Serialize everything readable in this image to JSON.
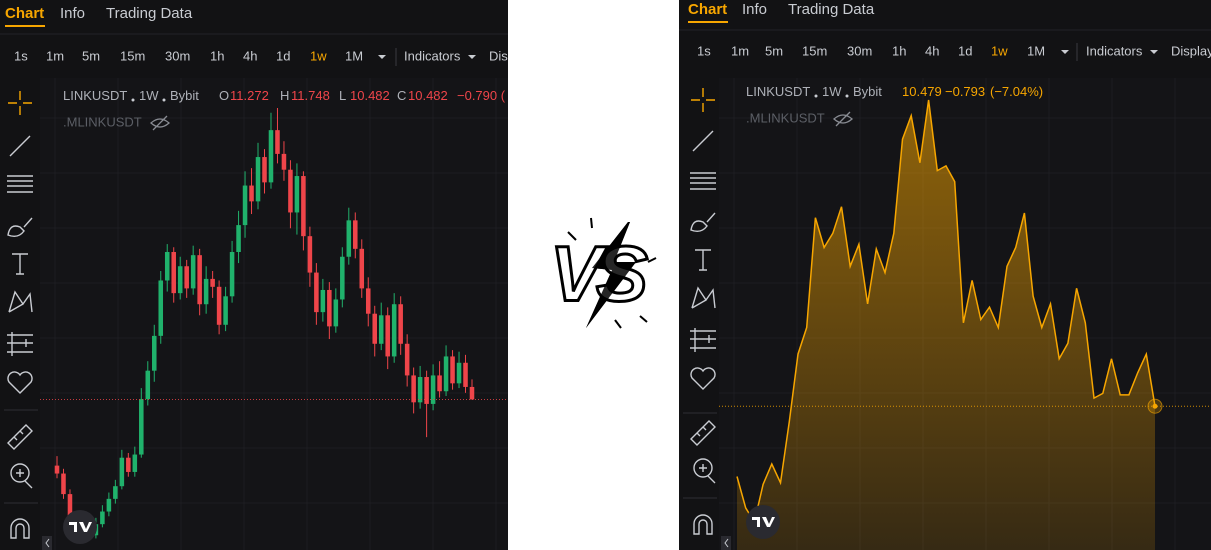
{
  "panels": [
    {
      "tabs": [
        "Chart",
        "Info",
        "Trading Data"
      ],
      "timeframes": [
        "1s",
        "1m",
        "5m",
        "15m",
        "30m",
        "1h",
        "4h",
        "1d",
        "1w",
        "1M"
      ],
      "indicators": "Indicators",
      "display": "Dis",
      "symbol": "LINKUSDT",
      "interval": "1W",
      "exchange": "Bybit",
      "ohlc": [
        {
          "label": "O",
          "value": 11.272
        },
        {
          "label": "H",
          "value": 11.748
        },
        {
          "label": "L",
          "value": 10.482
        },
        {
          "label": "C",
          "value": 10.482
        }
      ],
      "change": "−0.790 (",
      "secondary": ".MLINKUSDT",
      "chart": {
        "type": "candlestick",
        "up_color": "#20b26c",
        "down_color": "#ef454a",
        "candles": [
          [
            6.3,
            6.9,
            5.5,
            5.8
          ],
          [
            5.8,
            6.1,
            4.2,
            4.5
          ],
          [
            4.5,
            4.8,
            2.7,
            3.0
          ],
          [
            3.0,
            3.4,
            1.9,
            2.2
          ],
          [
            2.2,
            2.9,
            1.8,
            2.5
          ],
          [
            2.5,
            2.7,
            1.6,
            1.9
          ],
          [
            1.9,
            3.0,
            1.7,
            2.6
          ],
          [
            2.6,
            3.8,
            2.4,
            3.4
          ],
          [
            3.4,
            4.6,
            3.1,
            4.2
          ],
          [
            4.2,
            5.4,
            3.9,
            5.0
          ],
          [
            5.0,
            7.3,
            4.8,
            6.8
          ],
          [
            6.8,
            7.1,
            5.6,
            5.9
          ],
          [
            5.9,
            7.5,
            5.6,
            7.0
          ],
          [
            7.0,
            11.2,
            6.8,
            10.5
          ],
          [
            10.5,
            12.9,
            10.1,
            12.3
          ],
          [
            12.3,
            15.2,
            11.6,
            14.5
          ],
          [
            14.5,
            18.6,
            14.0,
            18.0
          ],
          [
            18.0,
            20.3,
            17.3,
            19.8
          ],
          [
            19.8,
            20.1,
            16.6,
            17.2
          ],
          [
            17.2,
            19.5,
            16.8,
            18.9
          ],
          [
            18.9,
            19.3,
            16.9,
            17.5
          ],
          [
            17.5,
            20.2,
            17.1,
            19.6
          ],
          [
            19.6,
            20.0,
            15.8,
            16.5
          ],
          [
            16.5,
            18.9,
            15.9,
            18.1
          ],
          [
            18.1,
            18.6,
            16.9,
            17.6
          ],
          [
            17.6,
            18.0,
            14.6,
            15.2
          ],
          [
            15.2,
            17.6,
            14.8,
            17.0
          ],
          [
            17.0,
            20.5,
            16.6,
            19.8
          ],
          [
            19.8,
            22.4,
            19.1,
            21.5
          ],
          [
            21.5,
            24.9,
            20.7,
            24.0
          ],
          [
            24.0,
            25.1,
            22.2,
            23.0
          ],
          [
            23.0,
            26.7,
            22.5,
            25.8
          ],
          [
            25.8,
            26.3,
            23.5,
            24.2
          ],
          [
            24.2,
            28.6,
            23.8,
            27.5
          ],
          [
            27.5,
            28.9,
            25.4,
            26.0
          ],
          [
            26.0,
            26.8,
            24.3,
            25.0
          ],
          [
            25.0,
            25.6,
            21.3,
            22.3
          ],
          [
            22.3,
            25.4,
            20.9,
            24.6
          ],
          [
            24.6,
            24.9,
            19.9,
            20.8
          ],
          [
            20.8,
            21.4,
            17.6,
            18.5
          ],
          [
            18.5,
            19.1,
            15.2,
            16.0
          ],
          [
            16.0,
            18.1,
            15.4,
            17.4
          ],
          [
            17.4,
            17.9,
            14.3,
            15.1
          ],
          [
            15.1,
            17.5,
            14.7,
            16.8
          ],
          [
            16.8,
            20.1,
            16.3,
            19.5
          ],
          [
            19.5,
            22.6,
            19.0,
            21.8
          ],
          [
            21.8,
            22.3,
            19.4,
            20.0
          ],
          [
            20.0,
            20.6,
            16.9,
            17.5
          ],
          [
            17.5,
            18.2,
            15.1,
            15.9
          ],
          [
            15.9,
            16.4,
            13.2,
            14.0
          ],
          [
            14.0,
            16.6,
            13.6,
            15.8
          ],
          [
            15.8,
            16.3,
            12.4,
            13.2
          ],
          [
            13.2,
            17.2,
            12.8,
            16.5
          ],
          [
            16.5,
            17.0,
            13.3,
            14.0
          ],
          [
            14.0,
            14.6,
            11.3,
            12.0
          ],
          [
            12.0,
            12.5,
            9.6,
            10.3
          ],
          [
            10.3,
            12.6,
            9.9,
            11.9
          ],
          [
            11.9,
            12.3,
            8.1,
            10.2
          ],
          [
            10.2,
            12.7,
            9.8,
            12.0
          ],
          [
            12.0,
            12.9,
            10.6,
            11.0
          ],
          [
            11.0,
            13.9,
            10.7,
            13.2
          ],
          [
            13.2,
            13.6,
            11.1,
            11.5
          ],
          [
            11.5,
            13.5,
            11.2,
            12.8
          ],
          [
            12.8,
            13.3,
            10.9,
            11.272
          ],
          [
            11.272,
            11.748,
            10.482,
            10.482
          ]
        ]
      }
    },
    {
      "tabs": [
        "Chart",
        "Info",
        "Trading Data"
      ],
      "timeframes": [
        "1s",
        "1m",
        "5m",
        "15m",
        "30m",
        "1h",
        "4h",
        "1d",
        "1w",
        "1M"
      ],
      "indicators": "Indicators",
      "display": "Display",
      "symbol": "LINKUSDT",
      "interval": "1W",
      "exchange": "Bybit",
      "last": 10.479,
      "change": "−0.793",
      "change_pct": "(−7.04%)",
      "secondary": ".MLINKUSDT",
      "chart": {
        "type": "area",
        "color": "#f7a600",
        "values": [
          6.0,
          4.0,
          3.1,
          5.5,
          6.8,
          5.6,
          9.5,
          13.8,
          15.5,
          22.5,
          20.6,
          21.5,
          23.2,
          19.4,
          20.8,
          17.0,
          20.5,
          19.0,
          21.5,
          27.5,
          29.0,
          26.0,
          30.0,
          25.5,
          25.8,
          24.8,
          15.8,
          18.5,
          16.0,
          16.8,
          15.5,
          19.4,
          20.6,
          22.8,
          17.5,
          15.5,
          17.0,
          13.5,
          14.5,
          18.0,
          15.8,
          11.0,
          11.3,
          13.5,
          11.2,
          11.2,
          12.6,
          13.8,
          10.479
        ]
      }
    }
  ],
  "vs": "VS"
}
